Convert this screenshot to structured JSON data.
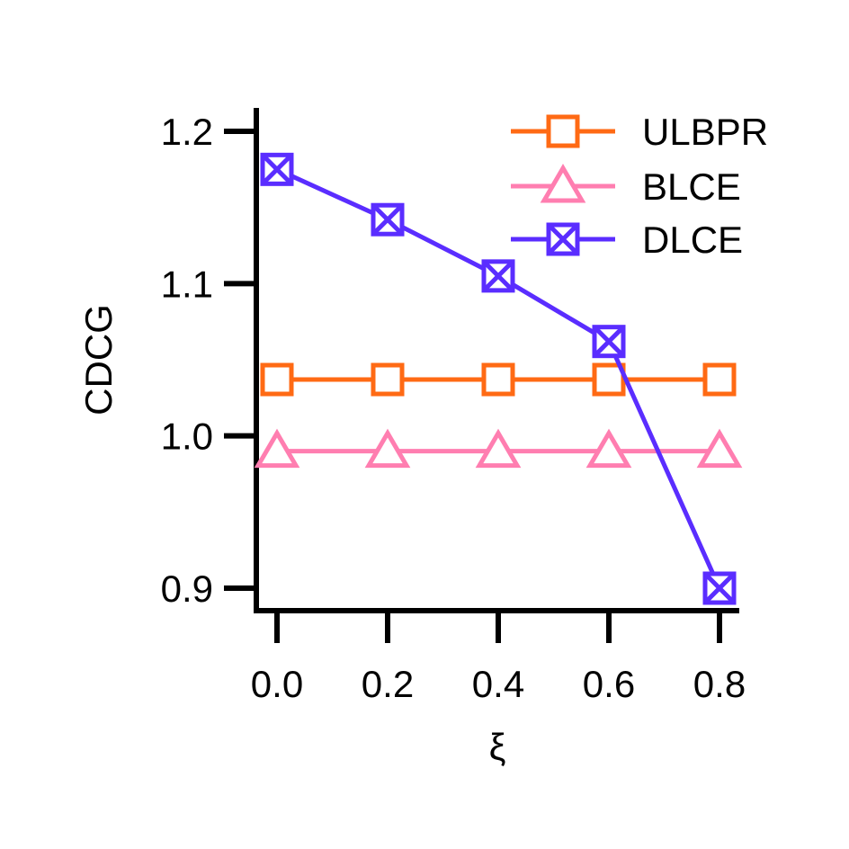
{
  "chart_data": {
    "type": "line",
    "title": "",
    "xlabel": "ξ",
    "ylabel": "CDCG",
    "x": [
      0.0,
      0.2,
      0.4,
      0.6,
      0.8
    ],
    "x_tick_labels": [
      "0.0",
      "0.2",
      "0.4",
      "0.6",
      "0.8"
    ],
    "y_ticks": [
      0.9,
      1.0,
      1.1,
      1.2
    ],
    "y_tick_labels": [
      "0.9",
      "1.0",
      "1.1",
      "1.2"
    ],
    "xlim": [
      -0.02,
      0.82
    ],
    "ylim": [
      0.885,
      1.215
    ],
    "grid": false,
    "legend_position": "top-right",
    "series": [
      {
        "name": "ULBPR",
        "values": [
          1.037,
          1.037,
          1.037,
          1.037,
          1.037
        ],
        "color": "#ff6a14",
        "marker": "square"
      },
      {
        "name": "BLCE",
        "values": [
          0.99,
          0.99,
          0.99,
          0.99,
          0.99
        ],
        "color": "#ff7eb0",
        "marker": "triangle"
      },
      {
        "name": "DLCE",
        "values": [
          1.175,
          1.142,
          1.105,
          1.062,
          0.9
        ],
        "color": "#5a2dff",
        "marker": "square-x"
      }
    ]
  }
}
